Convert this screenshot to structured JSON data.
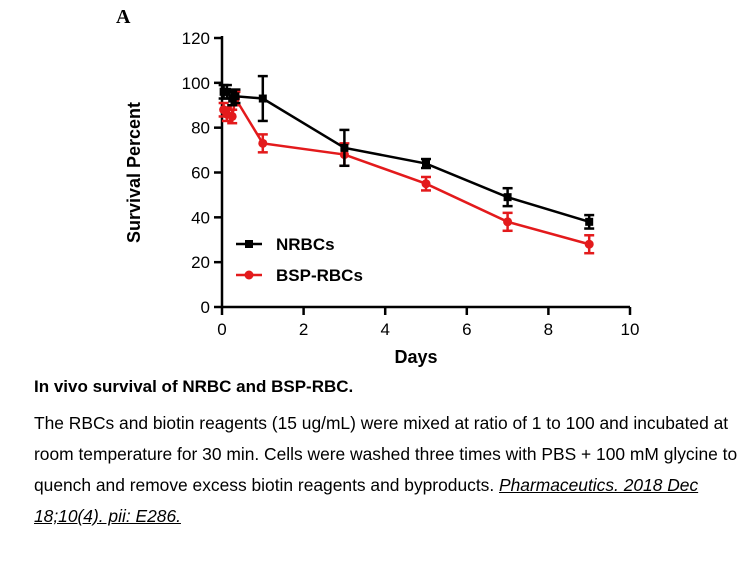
{
  "panel_label": "A",
  "caption": {
    "title": "In vivo survival of NRBC and BSP-RBC.",
    "body": "The RBCs and biotin reagents (15 ug/mL) were mixed at ratio of 1 to 100 and incubated at room temperature for 30 min. Cells were washed three times with PBS + 100 mM glycine to quench and remove excess biotin reagents and byproducts. ",
    "citation": "Pharmaceutics. 2018 Dec 18;10(4). pii: E286."
  },
  "chart_data": {
    "type": "line",
    "xlabel": "Days",
    "ylabel": "Survival Percent",
    "xlim": [
      0,
      10
    ],
    "ylim": [
      0,
      120
    ],
    "xticks": [
      0,
      2,
      4,
      6,
      8,
      10
    ],
    "yticks": [
      0,
      20,
      40,
      60,
      80,
      100,
      120
    ],
    "grid": false,
    "legend_position": "bottom-left",
    "series": [
      {
        "name": "NRBCs",
        "color": "#000000",
        "marker": "square",
        "x": [
          0.04,
          0.12,
          0.25,
          0.33,
          1,
          3,
          5,
          7,
          9
        ],
        "y": [
          96,
          96,
          93,
          94,
          93,
          71,
          64,
          49,
          38
        ],
        "err": [
          3,
          3,
          3,
          3,
          10,
          8,
          2,
          4,
          3
        ]
      },
      {
        "name": "BSP-RBCs",
        "color": "#e31a1c",
        "marker": "circle",
        "x": [
          0.04,
          0.12,
          0.25,
          0.33,
          1,
          3,
          5,
          7,
          9
        ],
        "y": [
          88,
          86,
          85,
          93,
          73,
          68,
          55,
          38,
          28
        ],
        "err": [
          3,
          3,
          3,
          3,
          4,
          5,
          3,
          4,
          4
        ]
      }
    ]
  }
}
